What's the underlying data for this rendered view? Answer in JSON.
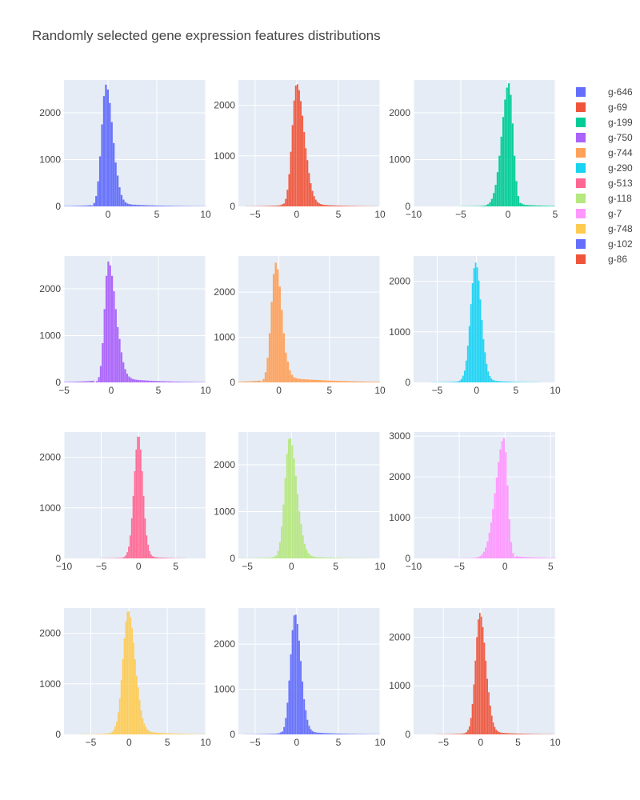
{
  "chart_data": {
    "type": "histogram",
    "title": "Randomly selected gene expression features distributions",
    "grid": true,
    "legend_position": "right",
    "panels": [
      {
        "name": "g-646",
        "color": "#636efa",
        "xlim": [
          -4.5,
          10
        ],
        "ylim": [
          0,
          2700
        ],
        "xticks": [
          0,
          5,
          10
        ],
        "yticks": [
          0,
          1000,
          2000
        ],
        "center": -0.2,
        "left_width": 0.45,
        "right_width": 0.7,
        "peak": 2600,
        "tail_value": 60,
        "tail_decay": 0.3
      },
      {
        "name": "g-69",
        "color": "#ef553b",
        "xlim": [
          -7,
          10
        ],
        "ylim": [
          0,
          2500
        ],
        "xticks": [
          -5,
          0,
          5,
          10
        ],
        "yticks": [
          0,
          1000,
          2000
        ],
        "center": 0.0,
        "left_width": 0.55,
        "right_width": 0.9,
        "peak": 2430,
        "tail_value": 60,
        "tail_decay": 0.35
      },
      {
        "name": "g-199",
        "color": "#00cc96",
        "xlim": [
          -10,
          5
        ],
        "ylim": [
          0,
          2700
        ],
        "xticks": [
          -10,
          -5,
          0,
          5
        ],
        "yticks": [
          0,
          1000,
          2000
        ],
        "center": 0.1,
        "left_width": 0.75,
        "right_width": 0.45,
        "peak": 2630,
        "tail_value": 40,
        "tail_decay": 0.4
      },
      {
        "name": "g-750",
        "color": "#ab63fa",
        "xlim": [
          -5,
          10
        ],
        "ylim": [
          0,
          2700
        ],
        "xticks": [
          -5,
          0,
          5,
          10
        ],
        "yticks": [
          0,
          1000,
          2000
        ],
        "center": -0.3,
        "left_width": 0.4,
        "right_width": 0.8,
        "peak": 2580,
        "tail_value": 90,
        "tail_decay": 0.28
      },
      {
        "name": "g-744",
        "color": "#ffa15a",
        "xlim": [
          -4,
          10
        ],
        "ylim": [
          0,
          2800
        ],
        "xticks": [
          0,
          5,
          10
        ],
        "yticks": [
          0,
          1000,
          2000
        ],
        "center": -0.3,
        "left_width": 0.45,
        "right_width": 0.6,
        "peak": 2650,
        "tail_value": 100,
        "tail_decay": 0.22
      },
      {
        "name": "g-290",
        "color": "#19d3f3",
        "xlim": [
          -8,
          10
        ],
        "ylim": [
          0,
          2500
        ],
        "xticks": [
          -5,
          0,
          5,
          10
        ],
        "yticks": [
          0,
          1000,
          2000
        ],
        "center": -0.1,
        "left_width": 0.65,
        "right_width": 0.7,
        "peak": 2370,
        "tail_value": 50,
        "tail_decay": 0.4
      },
      {
        "name": "g-513",
        "color": "#ff6692",
        "xlim": [
          -10,
          9
        ],
        "ylim": [
          0,
          2500
        ],
        "xticks": [
          -10,
          -5,
          0,
          5
        ],
        "yticks": [
          0,
          1000,
          2000
        ],
        "center": 0.0,
        "left_width": 0.6,
        "right_width": 0.6,
        "peak": 2440,
        "tail_value": 40,
        "tail_decay": 0.5
      },
      {
        "name": "g-118",
        "color": "#b6e880",
        "xlim": [
          -6,
          10
        ],
        "ylim": [
          0,
          2700
        ],
        "xticks": [
          -5,
          0,
          5,
          10
        ],
        "yticks": [
          0,
          1000,
          2000
        ],
        "center": -0.2,
        "left_width": 0.55,
        "right_width": 0.8,
        "peak": 2590,
        "tail_value": 50,
        "tail_decay": 0.35
      },
      {
        "name": "g-7",
        "color": "#ff97ff",
        "xlim": [
          -10,
          5.5
        ],
        "ylim": [
          0,
          3100
        ],
        "xticks": [
          -10,
          -5,
          0,
          5
        ],
        "yticks": [
          0,
          1000,
          2000,
          3000
        ],
        "center": -0.1,
        "left_width": 0.9,
        "right_width": 0.4,
        "peak": 2950,
        "tail_value": 50,
        "tail_decay": 0.35
      },
      {
        "name": "g-748",
        "color": "#fecb52",
        "xlim": [
          -8.5,
          10
        ],
        "ylim": [
          0,
          2500
        ],
        "xticks": [
          -5,
          0,
          5,
          10
        ],
        "yticks": [
          0,
          1000,
          2000
        ],
        "center": -0.1,
        "left_width": 0.7,
        "right_width": 0.9,
        "peak": 2450,
        "tail_value": 70,
        "tail_decay": 0.3
      },
      {
        "name": "g-102",
        "color": "#636efa",
        "xlim": [
          -7,
          10
        ],
        "ylim": [
          0,
          2800
        ],
        "xticks": [
          -5,
          0,
          5,
          10
        ],
        "yticks": [
          0,
          1000,
          2000
        ],
        "center": -0.2,
        "left_width": 0.55,
        "right_width": 0.7,
        "peak": 2680,
        "tail_value": 60,
        "tail_decay": 0.3
      },
      {
        "name": "g-86",
        "color": "#ef553b",
        "xlim": [
          -9,
          10
        ],
        "ylim": [
          0,
          2600
        ],
        "xticks": [
          -5,
          0,
          5,
          10
        ],
        "yticks": [
          0,
          1000,
          2000
        ],
        "center": -0.1,
        "left_width": 0.6,
        "right_width": 0.8,
        "peak": 2500,
        "tail_value": 55,
        "tail_decay": 0.3
      }
    ],
    "legend": [
      "g-646",
      "g-69",
      "g-199",
      "g-750",
      "g-744",
      "g-290",
      "g-513",
      "g-118",
      "g-7",
      "g-748",
      "g-102",
      "g-86"
    ]
  }
}
